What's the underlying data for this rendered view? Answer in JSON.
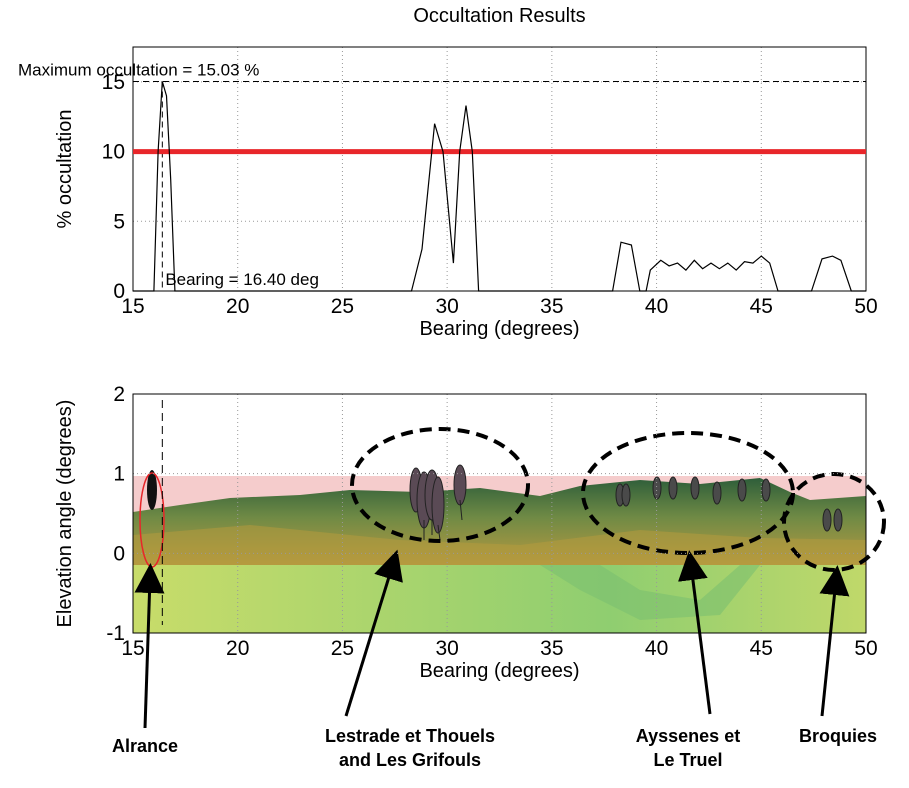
{
  "chart_data": [
    {
      "type": "line",
      "title": "Occultation Results",
      "xlabel": "Bearing (degrees)",
      "ylabel": "% occultation",
      "x": [
        15,
        16.0,
        16.2,
        16.4,
        16.6,
        16.8,
        17.0,
        28.3,
        28.8,
        29.4,
        29.8,
        30.3,
        30.6,
        30.9,
        31.2,
        31.5,
        37.9,
        38.3,
        38.8,
        39.2,
        39.5,
        39.7,
        40.2,
        40.6,
        41.0,
        41.4,
        41.8,
        42.2,
        42.6,
        43.0,
        43.4,
        43.8,
        44.2,
        44.6,
        45.0,
        45.4,
        45.8,
        47.4,
        47.9,
        48.4,
        48.8,
        49.3,
        50
      ],
      "values": [
        0,
        0,
        10,
        15.03,
        14,
        8,
        0,
        0,
        3,
        12,
        10,
        2,
        10,
        13.3,
        10,
        0,
        0,
        3.5,
        3.3,
        0,
        0,
        1.5,
        2.2,
        1.8,
        2.0,
        1.5,
        2.2,
        1.6,
        2.0,
        1.6,
        2.0,
        1.5,
        2.1,
        2.0,
        2.5,
        2.0,
        0,
        0,
        2.3,
        2.5,
        2.2,
        0,
        0
      ],
      "color": "#000000",
      "threshold": 10,
      "threshold_color": "#e8262a",
      "max_occultation": 15.03,
      "max_bearing": 16.4,
      "annotations": [
        "Maximum occultation = 15.03 %",
        "Bearing = 16.40 deg"
      ],
      "xlim": [
        15,
        50
      ],
      "xticks": [
        15,
        20,
        25,
        30,
        35,
        40,
        45,
        50
      ],
      "ylim": [
        0,
        17.5
      ],
      "yticks": [
        0,
        5,
        10,
        15
      ],
      "grid": true
    },
    {
      "type": "terrain",
      "xlabel": "Bearing (degrees)",
      "ylabel": "Elevation angle (degrees)",
      "xlim": [
        15,
        50
      ],
      "xticks": [
        15,
        20,
        25,
        30,
        35,
        40,
        45,
        50
      ],
      "ylim": [
        -1,
        2
      ],
      "yticks": [
        -1,
        0,
        1,
        2
      ],
      "grid": true,
      "labels": [
        [
          "Alrance"
        ],
        [
          "Lestrade et Thouels",
          "and Les Grifouls"
        ],
        [
          "Ayssenes et",
          "Le Truel"
        ],
        [
          "Broquies"
        ]
      ]
    }
  ]
}
